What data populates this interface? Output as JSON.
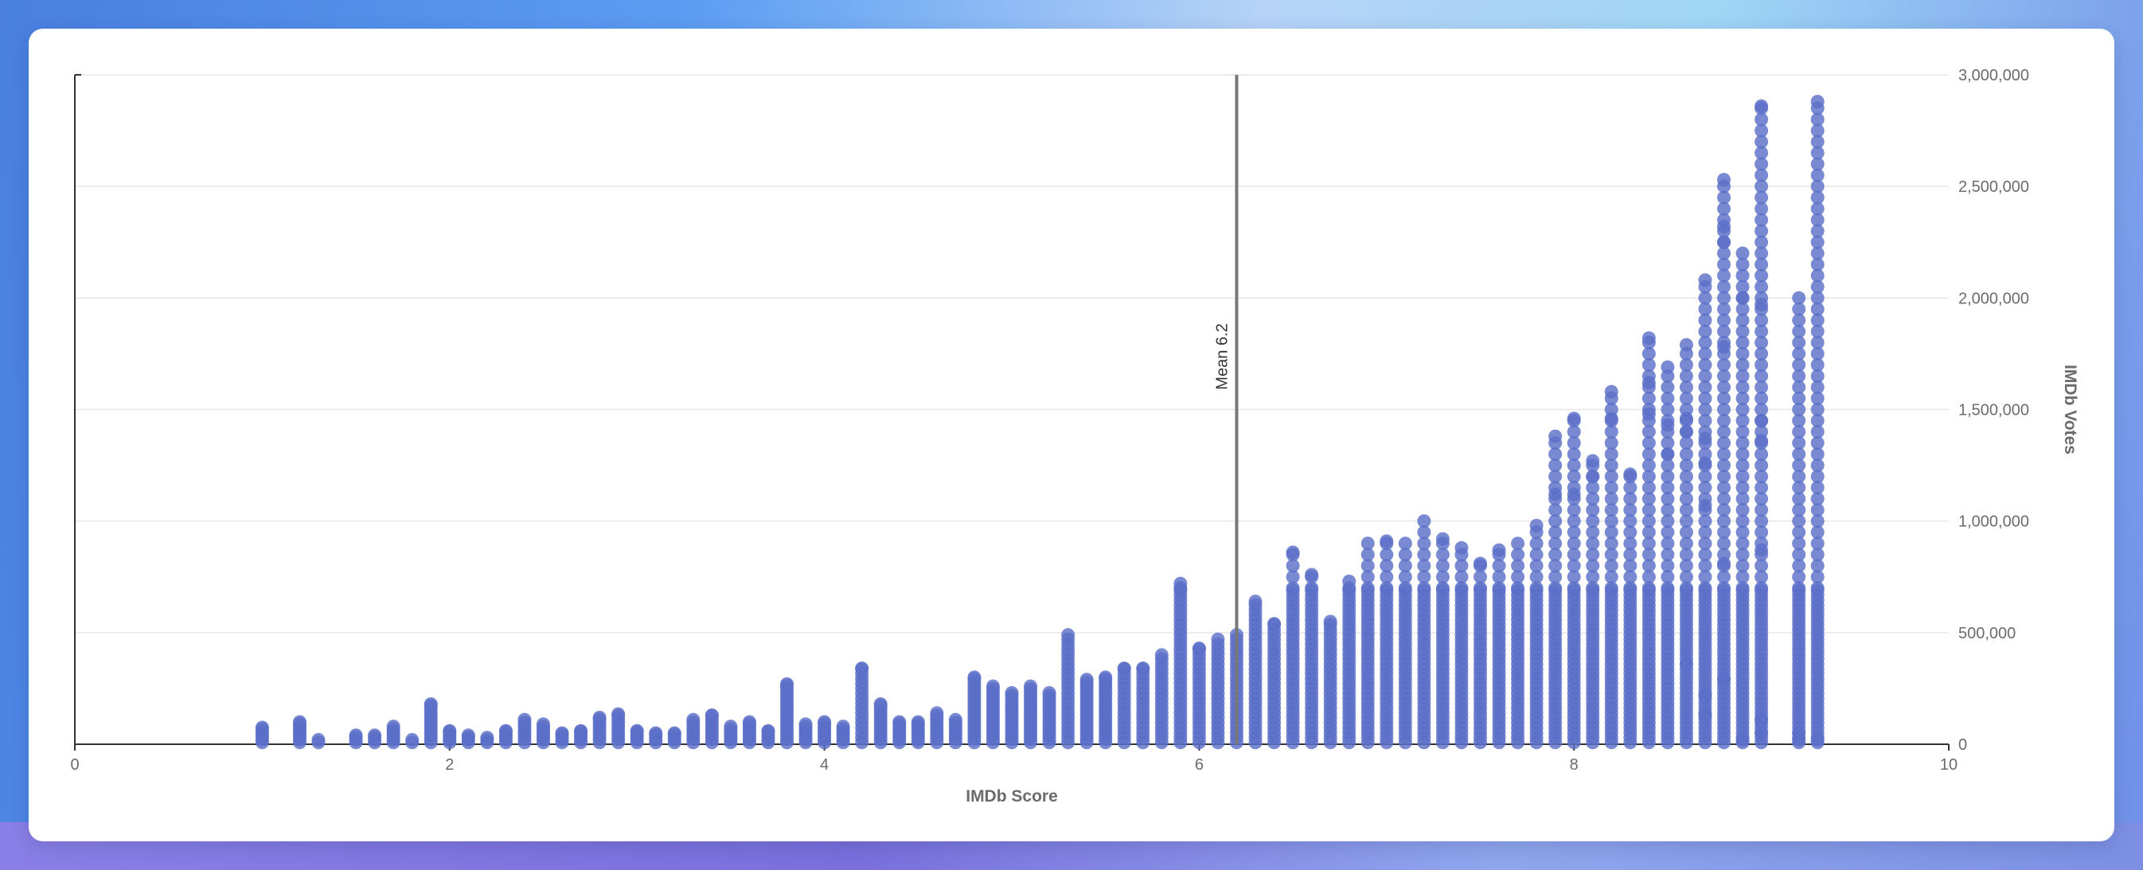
{
  "colors": {
    "point": "#5b6fc8",
    "grid": "#e6e6e6",
    "axis": "#333333",
    "mean_line": "#777777"
  },
  "chart_data": {
    "type": "scatter",
    "xlabel": "IMDb Score",
    "ylabel": "IMDb Votes",
    "xlim": [
      0,
      10
    ],
    "ylim": [
      0,
      3000000
    ],
    "x_ticks": [
      0,
      2,
      4,
      6,
      8,
      10
    ],
    "y_ticks": [
      0,
      500000,
      1000000,
      1500000,
      2000000,
      2500000,
      3000000
    ],
    "x_tick_labels": [
      "0",
      "2",
      "4",
      "6",
      "8",
      "10"
    ],
    "y_tick_labels": [
      "0",
      "500,000",
      "1,000,000",
      "1,500,000",
      "2,000,000",
      "2,500,000",
      "3,000,000"
    ],
    "grid": "horizontal",
    "mean": {
      "value": 6.2,
      "label": "Mean 6.2"
    },
    "columns": [
      {
        "x": 1.0,
        "max": 75000
      },
      {
        "x": 1.2,
        "max": 100000
      },
      {
        "x": 1.3,
        "max": 20000
      },
      {
        "x": 1.5,
        "max": 40000
      },
      {
        "x": 1.6,
        "max": 40000
      },
      {
        "x": 1.7,
        "max": 80000
      },
      {
        "x": 1.8,
        "max": 20000
      },
      {
        "x": 1.9,
        "max": 180000
      },
      {
        "x": 2.0,
        "max": 60000
      },
      {
        "x": 2.1,
        "max": 40000
      },
      {
        "x": 2.2,
        "max": 30000
      },
      {
        "x": 2.3,
        "max": 60000
      },
      {
        "x": 2.4,
        "max": 110000
      },
      {
        "x": 2.5,
        "max": 90000
      },
      {
        "x": 2.6,
        "max": 50000
      },
      {
        "x": 2.7,
        "max": 60000
      },
      {
        "x": 2.8,
        "max": 120000
      },
      {
        "x": 2.9,
        "max": 135000
      },
      {
        "x": 3.0,
        "max": 60000
      },
      {
        "x": 3.1,
        "max": 50000
      },
      {
        "x": 3.2,
        "max": 50000
      },
      {
        "x": 3.3,
        "max": 110000
      },
      {
        "x": 3.4,
        "max": 130000
      },
      {
        "x": 3.5,
        "max": 80000
      },
      {
        "x": 3.6,
        "max": 100000
      },
      {
        "x": 3.7,
        "max": 60000
      },
      {
        "x": 3.8,
        "max": 270000
      },
      {
        "x": 3.9,
        "max": 90000
      },
      {
        "x": 4.0,
        "max": 100000
      },
      {
        "x": 4.1,
        "max": 80000
      },
      {
        "x": 4.2,
        "max": 340000
      },
      {
        "x": 4.3,
        "max": 180000
      },
      {
        "x": 4.4,
        "max": 100000
      },
      {
        "x": 4.5,
        "max": 100000
      },
      {
        "x": 4.6,
        "max": 140000
      },
      {
        "x": 4.7,
        "max": 110000
      },
      {
        "x": 4.8,
        "max": 300000
      },
      {
        "x": 4.9,
        "max": 260000
      },
      {
        "x": 5.0,
        "max": 230000
      },
      {
        "x": 5.1,
        "max": 260000
      },
      {
        "x": 5.2,
        "max": 230000
      },
      {
        "x": 5.3,
        "max": 490000
      },
      {
        "x": 5.4,
        "max": 290000
      },
      {
        "x": 5.5,
        "max": 300000
      },
      {
        "x": 5.6,
        "max": 340000
      },
      {
        "x": 5.7,
        "max": 340000
      },
      {
        "x": 5.8,
        "max": 400000
      },
      {
        "x": 5.9,
        "max": 720000
      },
      {
        "x": 6.0,
        "max": 430000
      },
      {
        "x": 6.1,
        "max": 470000
      },
      {
        "x": 6.2,
        "max": 490000
      },
      {
        "x": 6.3,
        "max": 640000
      },
      {
        "x": 6.4,
        "max": 540000
      },
      {
        "x": 6.5,
        "max": 860000
      },
      {
        "x": 6.6,
        "max": 760000
      },
      {
        "x": 6.7,
        "max": 550000
      },
      {
        "x": 6.8,
        "max": 730000
      },
      {
        "x": 6.9,
        "max": 900000
      },
      {
        "x": 7.0,
        "max": 910000
      },
      {
        "x": 7.1,
        "max": 900000
      },
      {
        "x": 7.2,
        "max": 1000000
      },
      {
        "x": 7.3,
        "max": 920000
      },
      {
        "x": 7.4,
        "max": 880000
      },
      {
        "x": 7.5,
        "max": 810000
      },
      {
        "x": 7.6,
        "max": 870000
      },
      {
        "x": 7.7,
        "max": 900000
      },
      {
        "x": 7.8,
        "max": 980000
      },
      {
        "x": 7.9,
        "max": 1380000
      },
      {
        "x": 8.0,
        "max": 1460000
      },
      {
        "x": 8.1,
        "max": 1270000
      },
      {
        "x": 8.2,
        "max": 1580000
      },
      {
        "x": 8.3,
        "max": 1210000
      },
      {
        "x": 8.4,
        "max": 1820000
      },
      {
        "x": 8.5,
        "max": 1690000
      },
      {
        "x": 8.6,
        "max": 1790000
      },
      {
        "x": 8.7,
        "max": 2080000
      },
      {
        "x": 8.8,
        "max": 2530000
      },
      {
        "x": 8.9,
        "max": 2200000
      },
      {
        "x": 9.0,
        "max": 2860000
      },
      {
        "x": 9.2,
        "max": 2000000
      },
      {
        "x": 9.3,
        "max": 2880000
      }
    ],
    "outliers": [
      [
        8.4,
        1620000
      ],
      [
        8.4,
        1480000
      ],
      [
        8.5,
        1430000
      ],
      [
        8.5,
        1300000
      ],
      [
        8.6,
        1460000
      ],
      [
        8.6,
        1400000
      ],
      [
        8.7,
        1370000
      ],
      [
        8.7,
        1260000
      ],
      [
        8.7,
        1070000
      ],
      [
        8.8,
        2320000
      ],
      [
        8.8,
        2250000
      ],
      [
        8.8,
        1780000
      ],
      [
        8.8,
        810000
      ],
      [
        8.8,
        290000
      ],
      [
        8.9,
        2000000
      ],
      [
        8.9,
        20000
      ],
      [
        9.0,
        1970000
      ],
      [
        9.0,
        1450000
      ],
      [
        9.0,
        1360000
      ],
      [
        9.0,
        870000
      ],
      [
        9.0,
        110000
      ],
      [
        9.0,
        50000
      ],
      [
        9.2,
        50000
      ],
      [
        9.2,
        20000
      ],
      [
        9.3,
        20000
      ],
      [
        8.2,
        1460000
      ],
      [
        8.0,
        1120000
      ],
      [
        7.9,
        1120000
      ],
      [
        8.1,
        1200000
      ],
      [
        8.7,
        220000
      ],
      [
        8.7,
        130000
      ],
      [
        8.6,
        360000
      ]
    ]
  }
}
